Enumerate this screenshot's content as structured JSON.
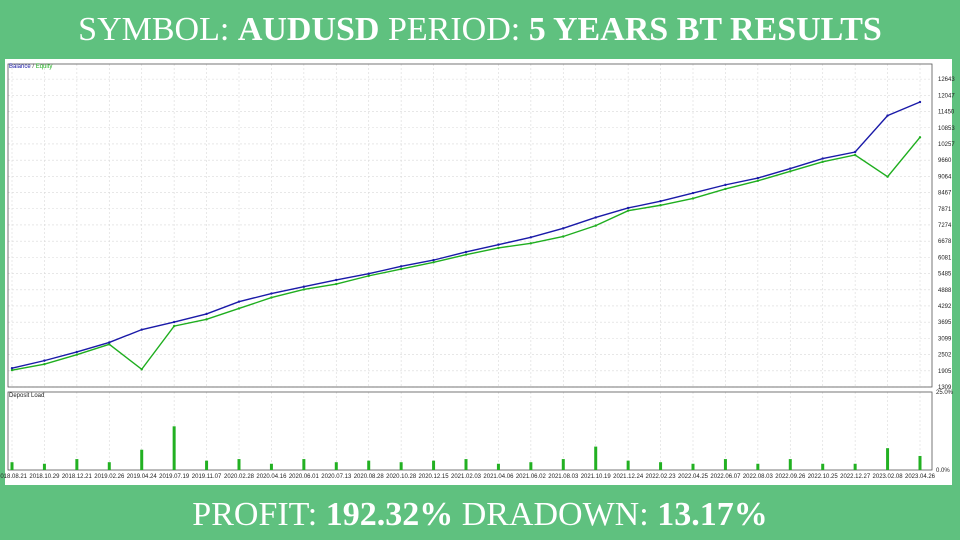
{
  "header": {
    "symbol_label": "SYMBOL:",
    "symbol_value": "AUDUSD",
    "period_label": "PERIOD:",
    "period_value": "5 YEARS BT RESULTS"
  },
  "footer": {
    "profit_label": "PROFIT:",
    "profit_value": "192.32%",
    "drawdown_label": "DRADOWN:",
    "drawdown_value": "13.17%"
  },
  "colors": {
    "background": "#5fc17f",
    "balance": "#1a1aa8",
    "equity": "#1fae1f",
    "deposit_load": "#22b022",
    "grid": "#d9d9d9"
  },
  "chart_data": [
    {
      "type": "line",
      "legend": {
        "balance": "Balance",
        "separator": " / ",
        "equity": "Equity",
        "position": "top-left"
      },
      "grid": true,
      "ylim": [
        1309,
        13200
      ],
      "y_ticks": [
        "12643",
        "12047",
        "11450",
        "10853",
        "10257",
        "9660",
        "9064",
        "8467",
        "7871",
        "7274",
        "6678",
        "6081",
        "5485",
        "4888",
        "4292",
        "3695",
        "3099",
        "2502",
        "1905",
        "1309"
      ],
      "x": [
        "2018.08.21",
        "2018.10.29",
        "2018.12.21",
        "2019.02.26",
        "2019.04.24",
        "2019.07.19",
        "2019.11.07",
        "2020.02.28",
        "2020.04.16",
        "2020.06.01",
        "2020.07.13",
        "2020.08.28",
        "2020.10.28",
        "2020.12.15",
        "2021.02.03",
        "2021.04.06",
        "2021.06.02",
        "2021.08.03",
        "2021.10.19",
        "2021.12.24",
        "2022.02.23",
        "2022.04.25",
        "2022.06.07",
        "2022.08.03",
        "2022.09.26",
        "2022.10.25",
        "2022.12.27",
        "2023.02.08",
        "2023.04.26"
      ],
      "series": [
        {
          "name": "Balance",
          "values": [
            2000,
            2280,
            2600,
            2950,
            3420,
            3700,
            4000,
            4450,
            4750,
            5000,
            5250,
            5480,
            5750,
            5980,
            6280,
            6550,
            6820,
            7150,
            7550,
            7900,
            8150,
            8450,
            8750,
            9000,
            9350,
            9720,
            9960,
            11300,
            11800
          ]
        },
        {
          "name": "Equity",
          "values": [
            1930,
            2150,
            2500,
            2880,
            1960,
            3550,
            3800,
            4200,
            4600,
            4900,
            5100,
            5400,
            5650,
            5900,
            6180,
            6430,
            6600,
            6850,
            7250,
            7800,
            8000,
            8250,
            8600,
            8900,
            9250,
            9600,
            9850,
            9050,
            10500
          ]
        }
      ]
    },
    {
      "type": "bar",
      "title": "Deposit Load",
      "y_ticks": [
        "25.0%",
        "0.0%"
      ],
      "ylim": [
        0,
        25
      ],
      "categories": [
        "2018.08.21",
        "2018.10.29",
        "2018.12.21",
        "2019.02.26",
        "2019.04.24",
        "2019.07.19",
        "2019.11.07",
        "2020.02.28",
        "2020.04.16",
        "2020.06.01",
        "2020.07.13",
        "2020.08.28",
        "2020.10.28",
        "2020.12.15",
        "2021.02.03",
        "2021.04.06",
        "2021.06.02",
        "2021.08.03",
        "2021.10.19",
        "2021.12.24",
        "2022.02.23",
        "2022.04.25",
        "2022.06.07",
        "2022.08.03",
        "2022.09.26",
        "2022.10.25",
        "2022.12.27",
        "2023.02.08",
        "2023.04.26"
      ],
      "values": [
        2.5,
        2.0,
        3.5,
        2.5,
        6.5,
        14.0,
        3.0,
        3.5,
        2.0,
        3.5,
        2.5,
        3.0,
        2.5,
        3.0,
        3.5,
        2.0,
        2.5,
        3.5,
        7.5,
        3.0,
        2.5,
        2.0,
        3.5,
        2.0,
        3.5,
        2.0,
        2.0,
        7.0,
        4.5
      ]
    }
  ]
}
